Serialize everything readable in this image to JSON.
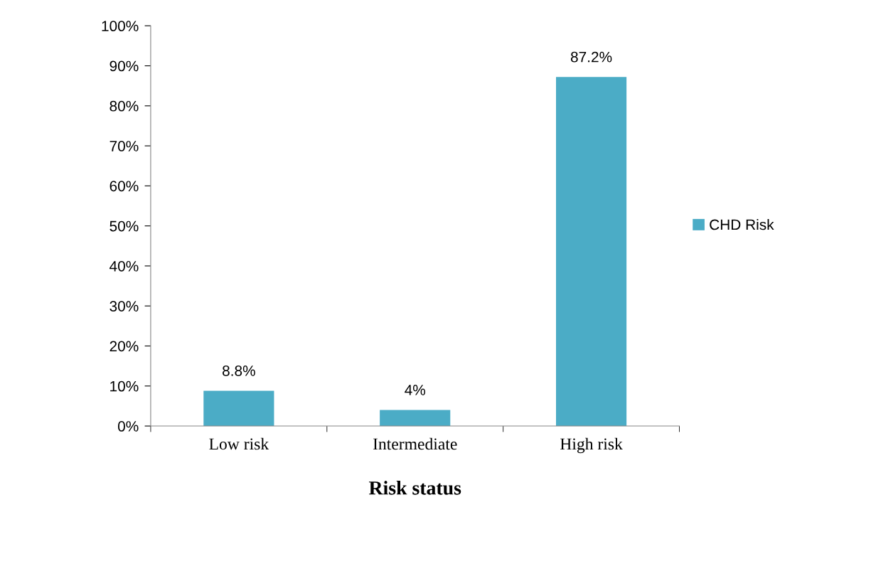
{
  "chart_data": {
    "type": "bar",
    "xlabel": "Risk status",
    "categories": [
      "Low risk",
      "Intermediate",
      "High risk"
    ],
    "series": [
      {
        "name": "CHD Risk",
        "color": "#4bacc6",
        "values": [
          8.8,
          4,
          87.2
        ],
        "value_labels": [
          "8.8%",
          "4%",
          "87.2%"
        ]
      }
    ],
    "ylim": [
      0,
      100
    ],
    "yticks": [
      {
        "value": 0,
        "label": "0%"
      },
      {
        "value": 10,
        "label": "10%"
      },
      {
        "value": 20,
        "label": "20%"
      },
      {
        "value": 30,
        "label": "30%"
      },
      {
        "value": 40,
        "label": "40%"
      },
      {
        "value": 50,
        "label": "50%"
      },
      {
        "value": 60,
        "label": "60%"
      },
      {
        "value": 70,
        "label": "70%"
      },
      {
        "value": 80,
        "label": "80%"
      },
      {
        "value": 90,
        "label": "90%"
      },
      {
        "value": 100,
        "label": "100%"
      }
    ],
    "grid": false,
    "legend": "right"
  }
}
